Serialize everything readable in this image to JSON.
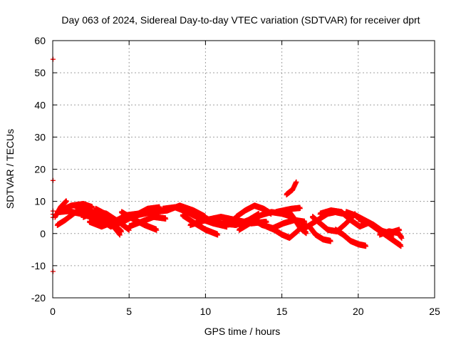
{
  "chart_data": {
    "type": "scatter",
    "title": "Day 063 of 2024, Sidereal Day-to-day VTEC variation (SDTVAR) for receiver dprt",
    "xlabel": "GPS time / hours",
    "ylabel": "SDTVAR / TECUs",
    "xlim": [
      0,
      25
    ],
    "ylim": [
      -20,
      60
    ],
    "xticks": [
      0,
      5,
      10,
      15,
      20,
      25
    ],
    "yticks": [
      -20,
      -10,
      0,
      10,
      20,
      30,
      40,
      50,
      60
    ],
    "grid": true,
    "marker": "+",
    "marker_color": "#ff0000",
    "isolated_points": [
      {
        "x": 0.02,
        "y": 54.2
      },
      {
        "x": 0.02,
        "y": 16.5
      },
      {
        "x": 0.02,
        "y": 7.0
      },
      {
        "x": 0.02,
        "y": 6.0
      },
      {
        "x": 0.02,
        "y": 5.0
      },
      {
        "x": 0.02,
        "y": -11.8
      }
    ],
    "tracks": [
      {
        "x": [
          0.15,
          0.5,
          0.9
        ],
        "y": [
          5.0,
          8.0,
          10.0
        ]
      },
      {
        "x": [
          0.3,
          1.2,
          2.0,
          2.6
        ],
        "y": [
          6.5,
          8.5,
          9.0,
          8.0
        ]
      },
      {
        "x": [
          0.3,
          0.8,
          1.5,
          2.2,
          2.8
        ],
        "y": [
          2.5,
          4.0,
          6.5,
          7.5,
          6.0
        ]
      },
      {
        "x": [
          0.4,
          1.0,
          1.8,
          2.6,
          3.3
        ],
        "y": [
          6.5,
          6.8,
          6.0,
          4.8,
          3.5
        ]
      },
      {
        "x": [
          1.5,
          2.3,
          3.0,
          3.8,
          4.5
        ],
        "y": [
          8.0,
          7.0,
          5.5,
          3.0,
          0.5
        ]
      },
      {
        "x": [
          2.0,
          2.8,
          3.5,
          4.3,
          5.0
        ],
        "y": [
          5.0,
          6.5,
          6.0,
          3.5,
          1.0
        ]
      },
      {
        "x": [
          2.4,
          3.2,
          4.0,
          4.8,
          5.6
        ],
        "y": [
          3.5,
          2.0,
          3.5,
          5.5,
          6.0
        ]
      },
      {
        "x": [
          2.8,
          3.4,
          3.9,
          4.4
        ],
        "y": [
          7.5,
          6.0,
          2.5,
          -0.5
        ]
      },
      {
        "x": [
          3.0,
          3.8,
          4.6,
          5.4,
          6.2,
          7.0
        ],
        "y": [
          4.5,
          2.0,
          3.5,
          5.5,
          7.5,
          8.0
        ]
      },
      {
        "x": [
          4.5,
          5.2,
          6.0,
          6.8
        ],
        "y": [
          6.5,
          4.5,
          2.5,
          1.0
        ]
      },
      {
        "x": [
          5.0,
          5.8,
          6.6,
          7.4
        ],
        "y": [
          2.0,
          3.5,
          5.0,
          4.5
        ]
      },
      {
        "x": [
          5.5,
          6.5,
          7.5,
          8.3,
          9.2,
          10.0
        ],
        "y": [
          5.5,
          6.5,
          7.0,
          8.5,
          7.0,
          5.0
        ]
      },
      {
        "x": [
          7.2,
          8.0,
          8.8,
          9.6,
          10.5,
          11.4
        ],
        "y": [
          7.5,
          8.0,
          6.5,
          4.5,
          3.0,
          2.0
        ]
      },
      {
        "x": [
          8.5,
          9.3,
          10.0,
          10.8
        ],
        "y": [
          5.5,
          3.0,
          1.0,
          -0.5
        ]
      },
      {
        "x": [
          9.0,
          10.0,
          11.0,
          12.0,
          13.0,
          14.0
        ],
        "y": [
          2.5,
          4.0,
          5.0,
          4.0,
          3.0,
          3.5
        ]
      },
      {
        "x": [
          10.0,
          11.0,
          12.0,
          12.8,
          13.5
        ],
        "y": [
          4.5,
          3.0,
          2.5,
          4.0,
          6.0
        ]
      },
      {
        "x": [
          12.0,
          12.6,
          13.2,
          13.8,
          14.3
        ],
        "y": [
          5.0,
          7.0,
          8.5,
          7.5,
          6.0
        ]
      },
      {
        "x": [
          12.2,
          12.9,
          13.6,
          14.3,
          15.0,
          15.7
        ],
        "y": [
          1.0,
          3.0,
          5.5,
          6.5,
          6.0,
          5.0
        ]
      },
      {
        "x": [
          13.0,
          13.7,
          14.4,
          15.1,
          15.8,
          16.5
        ],
        "y": [
          4.5,
          2.5,
          1.5,
          3.0,
          4.0,
          3.5
        ]
      },
      {
        "x": [
          14.0,
          14.5,
          15.0,
          15.5,
          16.0,
          16.5
        ],
        "y": [
          2.0,
          1.0,
          -0.5,
          -1.5,
          0.5,
          3.0
        ]
      },
      {
        "x": [
          14.6,
          15.1,
          15.6,
          16.2
        ],
        "y": [
          6.5,
          7.0,
          7.5,
          7.8
        ]
      },
      {
        "x": [
          15.4,
          15.8,
          16.2,
          16.6
        ],
        "y": [
          7.0,
          4.5,
          1.5,
          0.0
        ]
      },
      {
        "x": [
          15.3,
          15.7,
          15.95
        ],
        "y": [
          12.0,
          13.5,
          16.0
        ]
      },
      {
        "x": [
          16.5,
          17.0,
          17.5,
          18.0,
          18.5,
          19.0
        ],
        "y": [
          1.5,
          3.0,
          4.5,
          6.0,
          6.5,
          6.0
        ]
      },
      {
        "x": [
          17.0,
          17.5,
          18.0,
          18.6,
          19.2,
          19.8
        ],
        "y": [
          5.0,
          3.0,
          1.0,
          0.5,
          3.0,
          6.0
        ]
      },
      {
        "x": [
          16.8,
          17.2,
          17.7,
          18.2
        ],
        "y": [
          2.0,
          -0.5,
          -2.0,
          -2.5
        ]
      },
      {
        "x": [
          17.5,
          18.2,
          18.9,
          19.5,
          20.1,
          20.6
        ],
        "y": [
          6.0,
          7.0,
          6.5,
          4.0,
          2.0,
          3.0
        ]
      },
      {
        "x": [
          18.5,
          19.0,
          19.5,
          20.0,
          20.5
        ],
        "y": [
          1.0,
          -0.5,
          -2.5,
          -3.5,
          -4.0
        ]
      },
      {
        "x": [
          19.2,
          19.8,
          20.4,
          21.0,
          21.6,
          22.2
        ],
        "y": [
          6.5,
          5.5,
          4.0,
          2.5,
          0.5,
          -1.0
        ]
      },
      {
        "x": [
          20.0,
          20.7,
          21.3,
          22.0,
          22.7
        ],
        "y": [
          4.5,
          3.0,
          1.0,
          0.0,
          1.0
        ]
      },
      {
        "x": [
          21.0,
          21.6,
          22.2,
          22.8
        ],
        "y": [
          2.0,
          0.0,
          -2.0,
          -4.0
        ]
      },
      {
        "x": [
          21.4,
          22.0,
          22.6,
          22.85
        ],
        "y": [
          -0.5,
          0.5,
          0.0,
          -1.5
        ]
      }
    ]
  }
}
